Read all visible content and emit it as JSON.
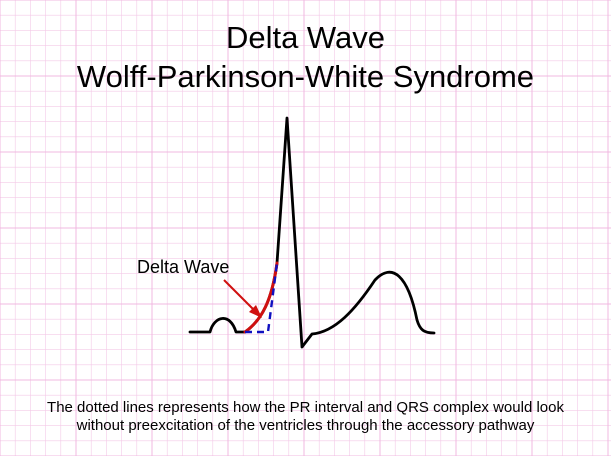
{
  "title": {
    "line1": "Delta Wave",
    "line2": "Wolff-Parkinson-White Syndrome"
  },
  "annotation": {
    "label": "Delta Wave"
  },
  "caption": {
    "line1": "The dotted lines represents how the PR interval and QRS complex would look",
    "line2": "without preexcitation of the ventricles through the accessory pathway"
  },
  "colors": {
    "grid": "#f0b8e0",
    "trace": "#000000",
    "delta_wave": "#d01010",
    "dotted_line": "#1010c0",
    "arrow": "#d01010"
  }
}
